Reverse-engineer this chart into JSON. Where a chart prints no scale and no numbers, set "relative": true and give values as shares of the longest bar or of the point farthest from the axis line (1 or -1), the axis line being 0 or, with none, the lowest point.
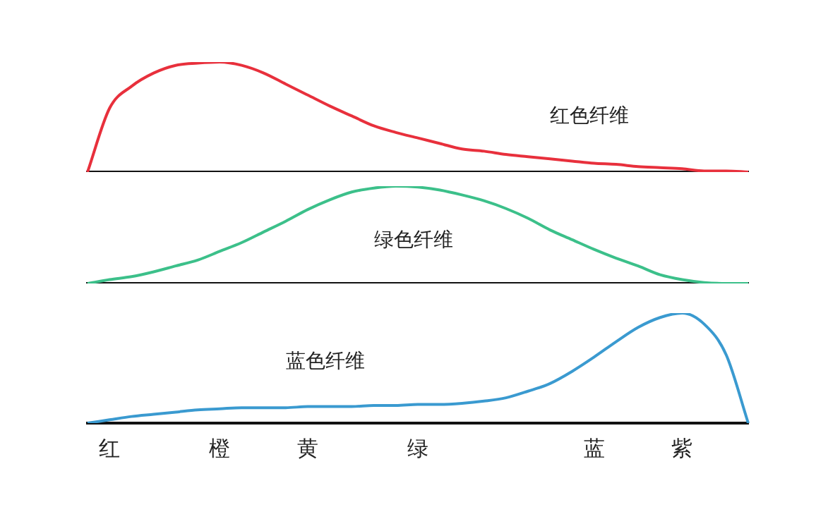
{
  "chart_data": [
    {
      "type": "line",
      "relative": true,
      "tick_labels": false,
      "categories": [
        null,
        null,
        null,
        null,
        null,
        null,
        null,
        null,
        null,
        null,
        null,
        null,
        null,
        null,
        null,
        null,
        null,
        null,
        null,
        null,
        null,
        null,
        null,
        null,
        null,
        null,
        null,
        null,
        null,
        null,
        null
      ],
      "series": [
        {
          "name": "红色纤维",
          "color": "#e8303c",
          "values": [
            0,
            0.58,
            0.78,
            0.9,
            0.97,
            0.99,
            1,
            0.97,
            0.9,
            0.8,
            0.7,
            0.6,
            0.51,
            0.42,
            0.36,
            0.31,
            0.26,
            0.21,
            0.19,
            0.16,
            0.14,
            0.12,
            0.1,
            0.08,
            0.07,
            0.05,
            0.04,
            0.03,
            0.01,
            0.01,
            0
          ]
        }
      ]
    },
    {
      "type": "line",
      "relative": true,
      "tick_labels": false,
      "categories": [
        null,
        null,
        null,
        null,
        null,
        null,
        null,
        null,
        null,
        null,
        null,
        null,
        null,
        null,
        null,
        null,
        null,
        null,
        null,
        null,
        null,
        null,
        null,
        null,
        null,
        null,
        null,
        null,
        null,
        null,
        null
      ],
      "series": [
        {
          "name": "绿色纤维",
          "color": "#3cc08a",
          "values": [
            0,
            0.04,
            0.07,
            0.12,
            0.18,
            0.24,
            0.33,
            0.42,
            0.53,
            0.64,
            0.76,
            0.86,
            0.94,
            0.98,
            1,
            0.99,
            0.96,
            0.91,
            0.85,
            0.77,
            0.67,
            0.55,
            0.45,
            0.35,
            0.26,
            0.18,
            0.09,
            0.04,
            0.01,
            0,
            0
          ]
        }
      ]
    },
    {
      "type": "line",
      "relative": true,
      "tick_labels": "x",
      "categories": [
        null,
        "红",
        null,
        null,
        null,
        null,
        "橙",
        null,
        null,
        null,
        "黄",
        null,
        null,
        null,
        null,
        "绿",
        null,
        null,
        null,
        null,
        null,
        null,
        null,
        "蓝",
        null,
        null,
        null,
        "紫",
        null,
        null,
        null
      ],
      "series": [
        {
          "name": "蓝色纤维",
          "color": "#3a9ad0",
          "values": [
            0,
            0.03,
            0.06,
            0.08,
            0.1,
            0.12,
            0.13,
            0.14,
            0.14,
            0.14,
            0.15,
            0.15,
            0.15,
            0.16,
            0.16,
            0.17,
            0.17,
            0.18,
            0.2,
            0.23,
            0.29,
            0.36,
            0.47,
            0.6,
            0.74,
            0.87,
            0.96,
            1,
            0.9,
            0.62,
            0
          ]
        }
      ]
    }
  ]
}
